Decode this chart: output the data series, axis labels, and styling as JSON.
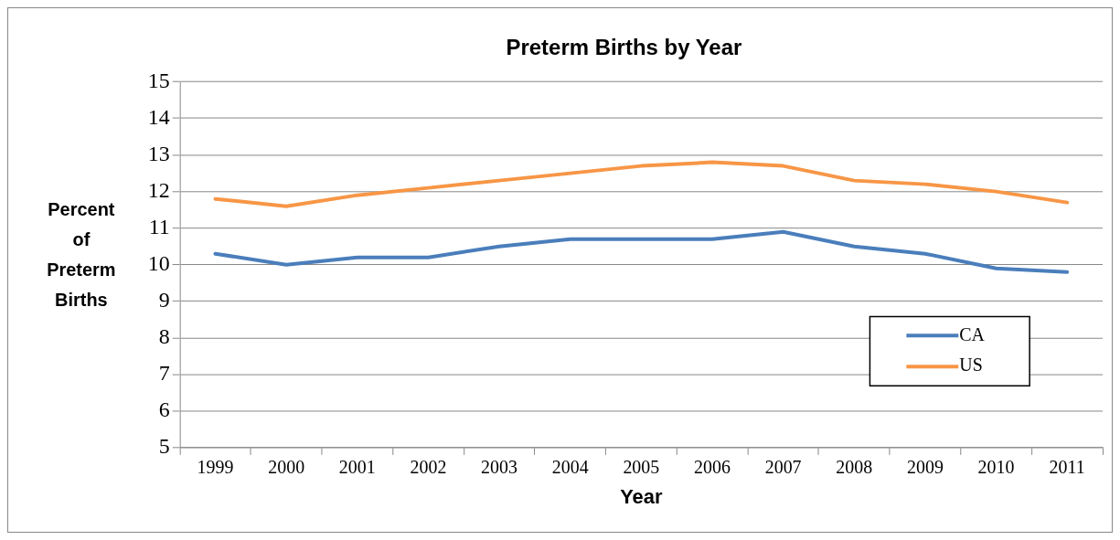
{
  "chart_data": {
    "type": "line",
    "title": "Preterm Births by Year",
    "xlabel": "Year",
    "ylabel": "Percent of Preterm Births",
    "categories": [
      "1999",
      "2000",
      "2001",
      "2002",
      "2003",
      "2004",
      "2005",
      "2006",
      "2007",
      "2008",
      "2009",
      "2010",
      "2011"
    ],
    "series": [
      {
        "name": "CA",
        "color": "#4a7ebb",
        "values": [
          10.3,
          10.0,
          10.2,
          10.2,
          10.5,
          10.7,
          10.7,
          10.7,
          10.9,
          10.5,
          10.3,
          9.9,
          9.8
        ]
      },
      {
        "name": "US",
        "color": "#f79646",
        "values": [
          11.8,
          11.6,
          11.9,
          12.1,
          12.3,
          12.5,
          12.7,
          12.8,
          12.7,
          12.3,
          12.2,
          12.0,
          11.7
        ]
      }
    ],
    "ylim": [
      5,
      15
    ],
    "yticks": [
      5,
      6,
      7,
      8,
      9,
      10,
      11,
      12,
      13,
      14,
      15
    ],
    "grid": "y",
    "legend": "bottom right",
    "marker": "none",
    "line_style": "solid"
  }
}
